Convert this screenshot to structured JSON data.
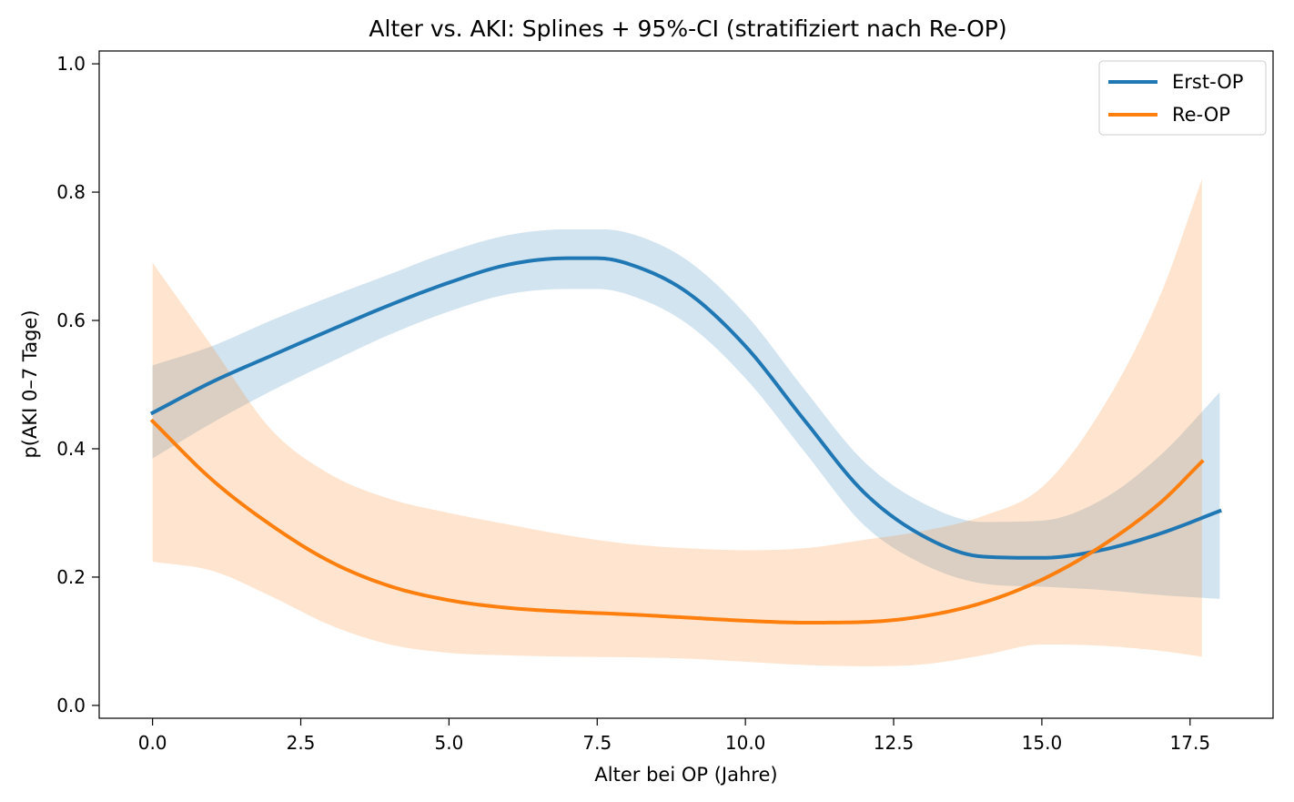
{
  "chart_data": {
    "type": "line",
    "title": "Alter vs. AKI: Splines + 95%-CI (stratifiziert nach Re-OP)",
    "xlabel": "Alter bei OP (Jahre)",
    "ylabel": "p(AKI 0–7 Tage)",
    "xlim": [
      -0.9,
      18.9
    ],
    "ylim": [
      -0.02,
      1.02
    ],
    "xticks": [
      0.0,
      2.5,
      5.0,
      7.5,
      10.0,
      12.5,
      15.0,
      17.5
    ],
    "xtick_labels": [
      "0.0",
      "2.5",
      "5.0",
      "7.5",
      "10.0",
      "12.5",
      "15.0",
      "17.5"
    ],
    "yticks": [
      0.0,
      0.2,
      0.4,
      0.6,
      0.8,
      1.0
    ],
    "ytick_labels": [
      "0.0",
      "0.2",
      "0.4",
      "0.6",
      "0.8",
      "1.0"
    ],
    "grid": false,
    "legend": "top-right",
    "series": [
      {
        "name": "Erst-OP",
        "color": "#1f77b4",
        "band_color": "#1f77b4",
        "x": [
          0,
          1,
          2,
          3,
          4,
          5,
          6,
          7,
          7.5,
          8,
          9,
          10,
          11,
          12,
          13,
          14,
          15,
          16,
          17,
          18
        ],
        "y": [
          0.456,
          0.504,
          0.545,
          0.585,
          0.624,
          0.659,
          0.687,
          0.697,
          0.697,
          0.689,
          0.645,
          0.56,
          0.444,
          0.332,
          0.264,
          0.232,
          0.23,
          0.242,
          0.268,
          0.303
        ],
        "ci_low": [
          0.385,
          0.44,
          0.49,
          0.535,
          0.578,
          0.614,
          0.641,
          0.649,
          0.649,
          0.641,
          0.596,
          0.51,
          0.395,
          0.281,
          0.22,
          0.19,
          0.185,
          0.18,
          0.172,
          0.166
        ],
        "ci_high": [
          0.53,
          0.56,
          0.6,
          0.637,
          0.672,
          0.707,
          0.733,
          0.742,
          0.742,
          0.737,
          0.695,
          0.61,
          0.492,
          0.38,
          0.315,
          0.286,
          0.288,
          0.32,
          0.39,
          0.488
        ]
      },
      {
        "name": "Re-OP",
        "color": "#ff7f0e",
        "band_color": "#ff7f0e",
        "x": [
          0,
          1,
          2,
          3,
          4,
          5,
          6,
          7,
          8,
          9,
          10,
          11,
          12,
          13,
          14,
          15,
          16,
          17,
          17.7
        ],
        "y": [
          0.443,
          0.352,
          0.281,
          0.224,
          0.186,
          0.164,
          0.152,
          0.146,
          0.142,
          0.137,
          0.132,
          0.129,
          0.13,
          0.139,
          0.16,
          0.196,
          0.248,
          0.316,
          0.38
        ],
        "ci_low": [
          0.224,
          0.21,
          0.17,
          0.125,
          0.095,
          0.082,
          0.078,
          0.076,
          0.075,
          0.073,
          0.068,
          0.063,
          0.061,
          0.064,
          0.078,
          0.095,
          0.093,
          0.085,
          0.076
        ],
        "ci_high": [
          0.69,
          0.56,
          0.43,
          0.36,
          0.322,
          0.3,
          0.282,
          0.265,
          0.252,
          0.245,
          0.242,
          0.245,
          0.258,
          0.272,
          0.295,
          0.34,
          0.46,
          0.64,
          0.82
        ]
      }
    ]
  }
}
